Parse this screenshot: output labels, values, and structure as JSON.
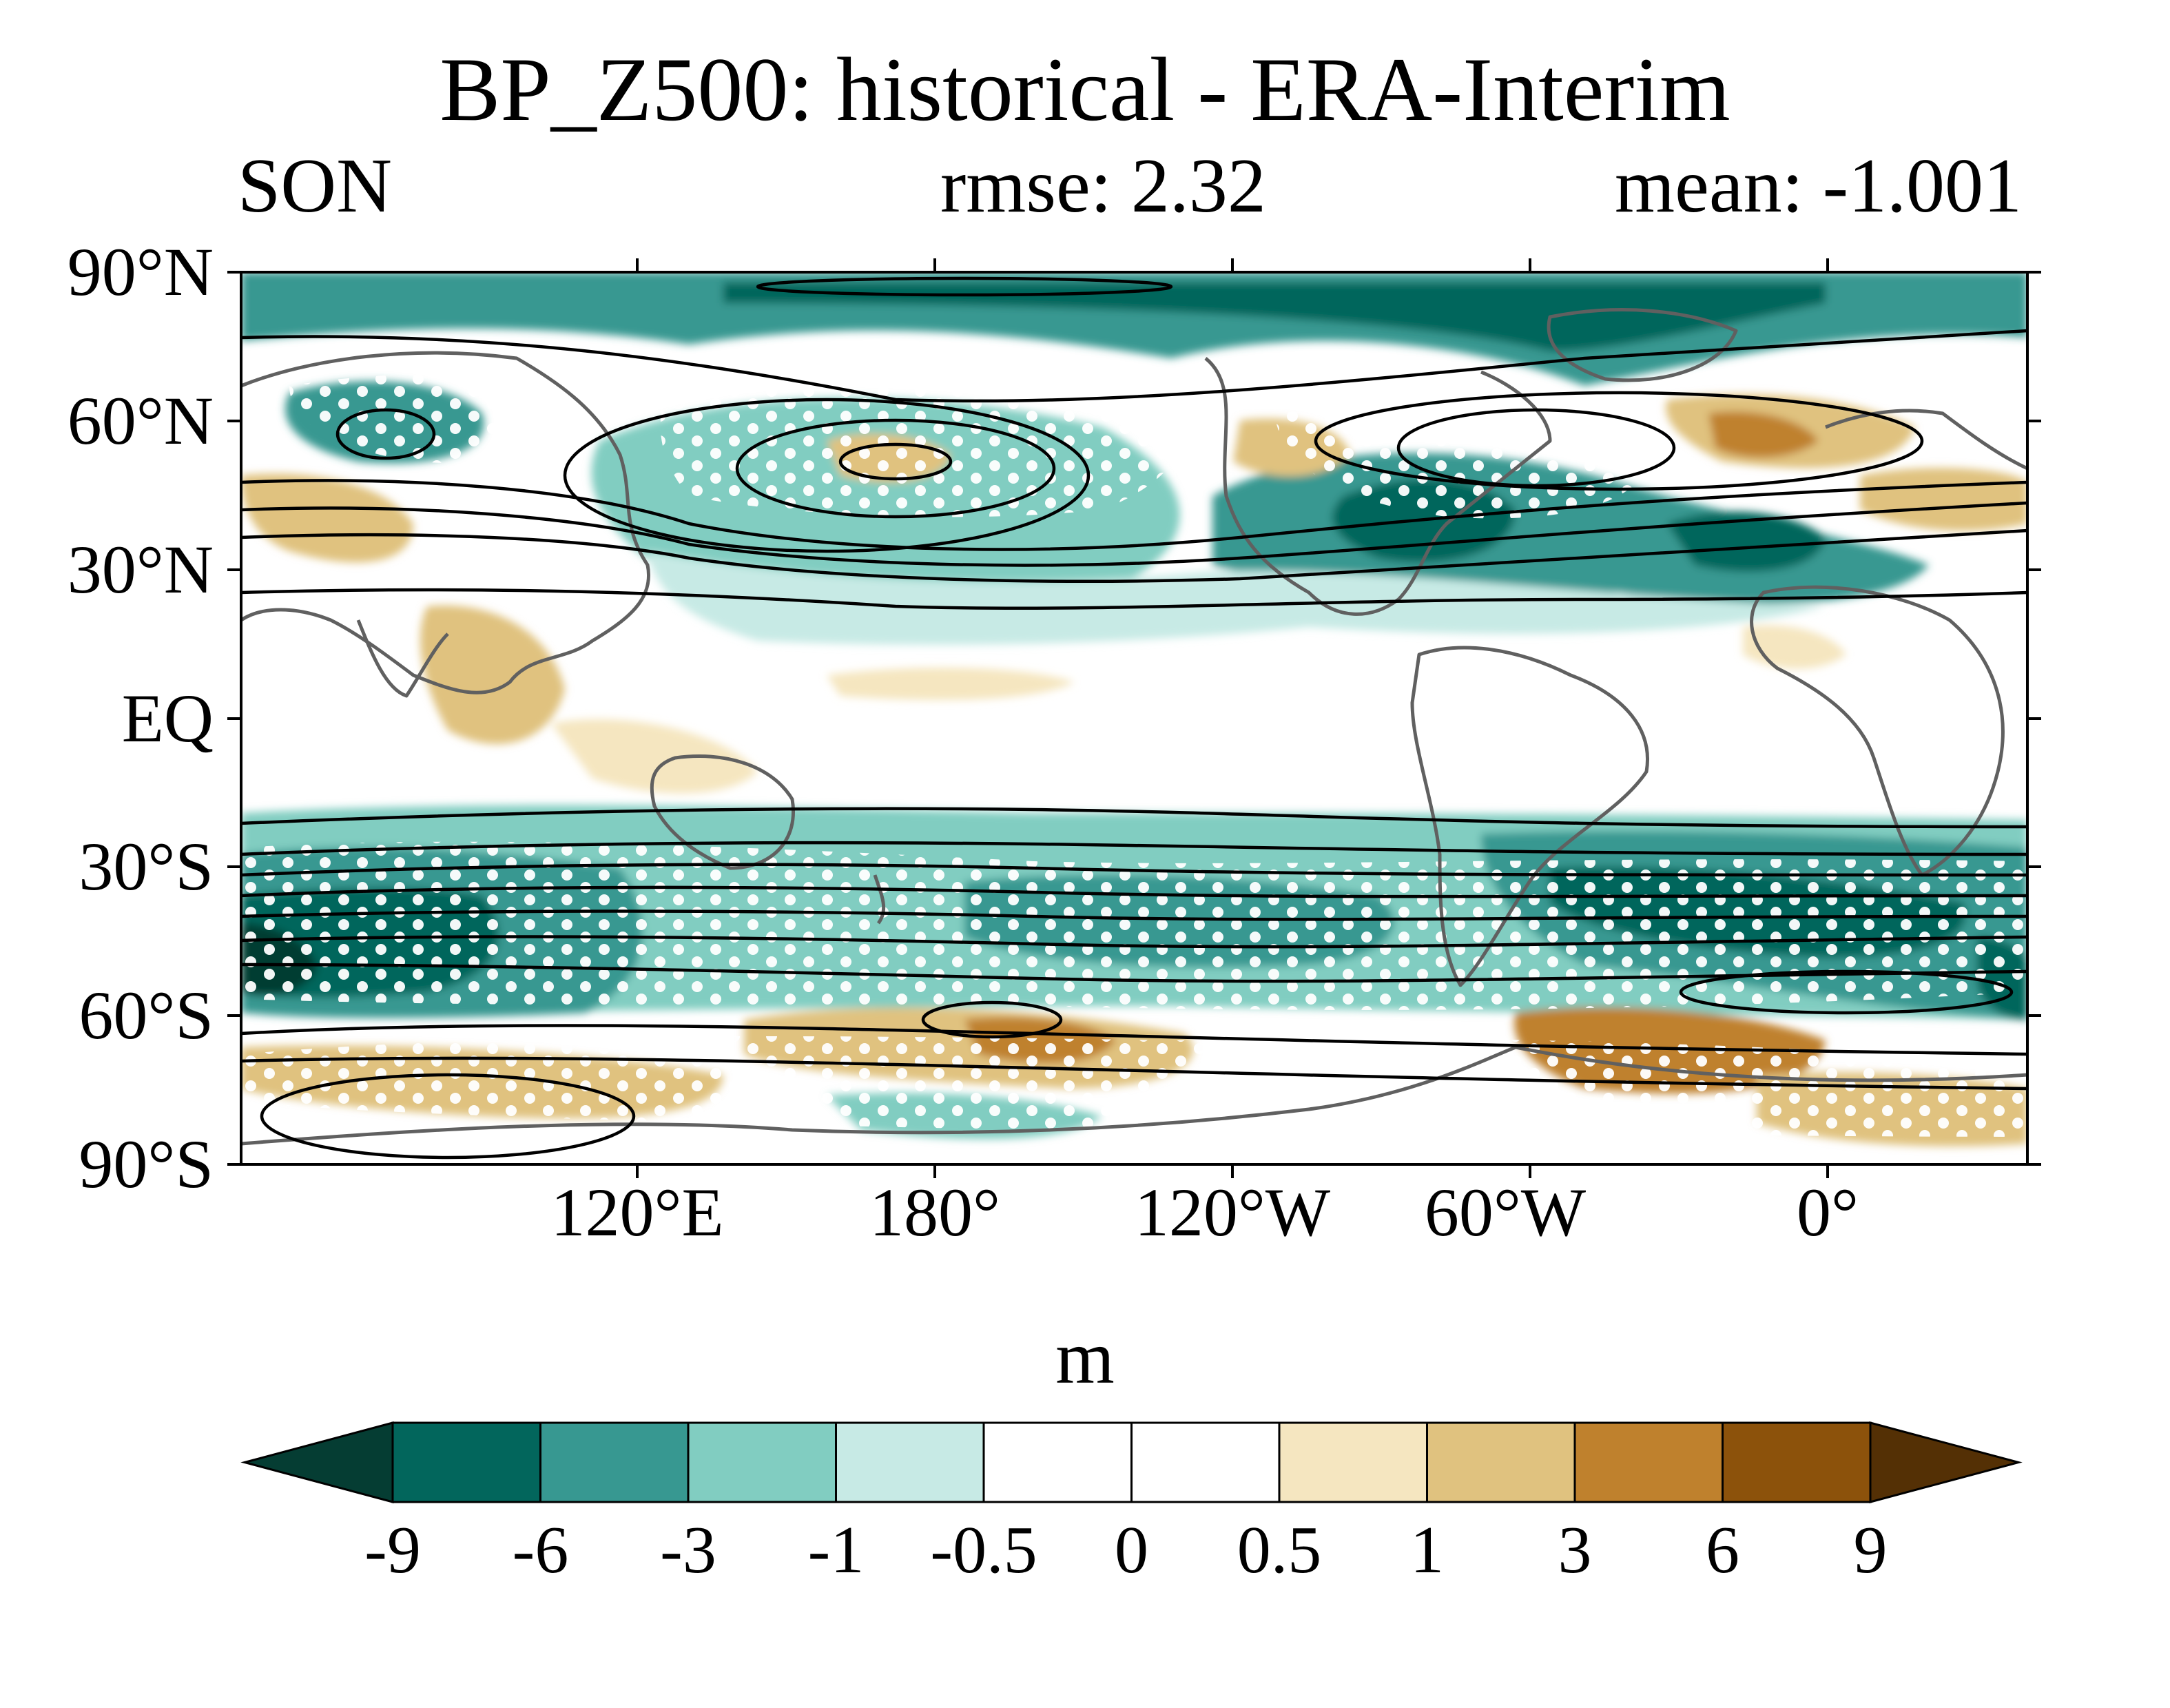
{
  "title": "BP_Z500: historical - ERA-Interim",
  "subtitle": {
    "left": "SON",
    "center": "rmse: 2.32",
    "right": "mean: -1.001"
  },
  "lat_labels": [
    "90°N",
    "60°N",
    "30°N",
    "EQ",
    "30°S",
    "60°S",
    "90°S"
  ],
  "lon_labels": [
    "120°E",
    "180°",
    "120°W",
    "60°W",
    "0°"
  ],
  "colorbar": {
    "units": "m",
    "levels": [
      "-9",
      "-6",
      "-3",
      "-1",
      "-0.5",
      "0",
      "0.5",
      "1",
      "3",
      "6",
      "9"
    ],
    "colors": [
      "#053d33",
      "#02665c",
      "#379891",
      "#81cdc1",
      "#c7eae5",
      "#ffffff",
      "#ffffff",
      "#f5e6c0",
      "#e0c27f",
      "#bf812d",
      "#8c520b",
      "#543005"
    ]
  },
  "chart_data": {
    "type": "heatmap",
    "variable": "BP_Z500",
    "comparison": "historical - ERA-Interim",
    "season": "SON",
    "rmse": 2.32,
    "mean": -1.001,
    "units": "m",
    "lat_range": [
      -90,
      90
    ],
    "lon_range": [
      40,
      400
    ],
    "lon_ticks": [
      120,
      180,
      240,
      300,
      360
    ],
    "lat_ticks": [
      90,
      60,
      30,
      0,
      -30,
      -60,
      -90
    ]
  }
}
